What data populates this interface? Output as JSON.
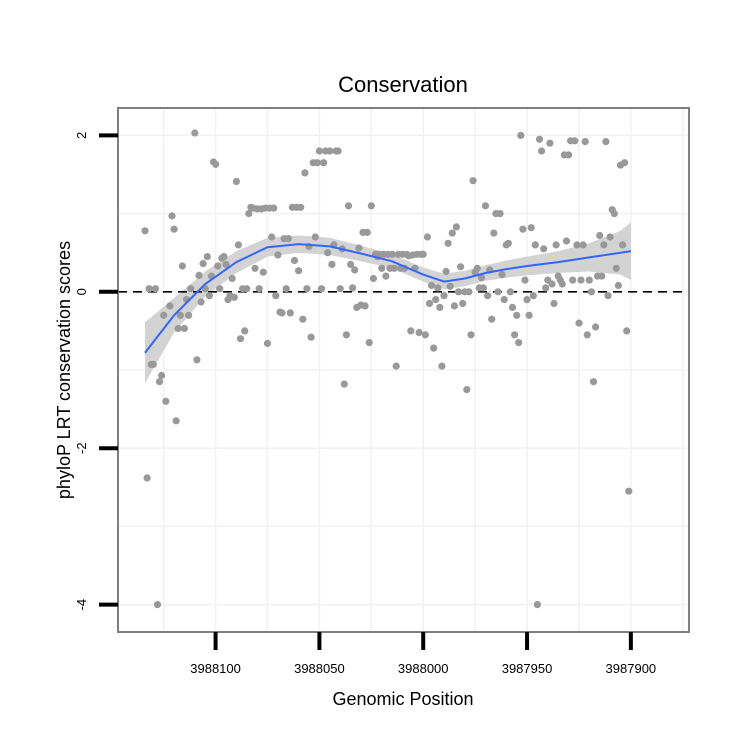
{
  "chart_data": {
    "type": "scatter",
    "title": "Conservation",
    "xlabel": "Genomic Position",
    "ylabel": "phyloP LRT conservation scores",
    "x_reversed": true,
    "xlim": [
      3988147,
      3987872
    ],
    "ylim": [
      -4.35,
      2.35
    ],
    "x_ticks": [
      3988100,
      3988050,
      3988000,
      3987950,
      3987900
    ],
    "x_tick_labels": [
      "3988100",
      "3988050",
      "3988000",
      "3987950",
      "3987900"
    ],
    "y_ticks": [
      2,
      0,
      -2,
      -4
    ],
    "y_tick_labels": [
      "2",
      "0",
      "-2",
      "-4"
    ],
    "grid": true,
    "reference_line": {
      "y": 0,
      "style": "dashed"
    },
    "colors": {
      "points": "#999999",
      "smooth_line": "#3366ff",
      "confidence_band": "#d3d3d3",
      "panel_border": "#7f7f7f",
      "grid": "#f2f2f2"
    },
    "points": [
      [
        3988134,
        0.78
      ],
      [
        3988133,
        -2.38
      ],
      [
        3988132,
        0.04
      ],
      [
        3988131,
        -0.93
      ],
      [
        3988130,
        -0.93
      ],
      [
        3988129,
        0.04
      ],
      [
        3988128,
        -4.0
      ],
      [
        3988127,
        -1.15
      ],
      [
        3988126,
        -1.07
      ],
      [
        3988125,
        -0.3
      ],
      [
        3988124,
        -1.4
      ],
      [
        3988122,
        -0.18
      ],
      [
        3988121,
        0.97
      ],
      [
        3988120,
        0.8
      ],
      [
        3988119,
        -1.65
      ],
      [
        3988118,
        -0.47
      ],
      [
        3988117,
        -0.3
      ],
      [
        3988116,
        0.33
      ],
      [
        3988115,
        -0.47
      ],
      [
        3988114,
        -0.1
      ],
      [
        3988113,
        -0.3
      ],
      [
        3988112,
        0.04
      ],
      [
        3988110,
        2.03
      ],
      [
        3988109,
        -0.87
      ],
      [
        3988108,
        0.21
      ],
      [
        3988107,
        -0.13
      ],
      [
        3988106,
        0.36
      ],
      [
        3988105,
        0.04
      ],
      [
        3988104,
        0.45
      ],
      [
        3988103,
        -0.05
      ],
      [
        3988102,
        0.2
      ],
      [
        3988101,
        1.66
      ],
      [
        3988100,
        1.63
      ],
      [
        3988099,
        0.33
      ],
      [
        3988098,
        0.04
      ],
      [
        3988097,
        0.43
      ],
      [
        3988096,
        0.45
      ],
      [
        3988095,
        0.35
      ],
      [
        3988094,
        -0.1
      ],
      [
        3988093,
        -0.05
      ],
      [
        3988092,
        0.17
      ],
      [
        3988091,
        -0.07
      ],
      [
        3988090,
        1.41
      ],
      [
        3988089,
        0.6
      ],
      [
        3988088,
        -0.6
      ],
      [
        3988087,
        0.04
      ],
      [
        3988086,
        -0.5
      ],
      [
        3988085,
        0.04
      ],
      [
        3988084,
        1.0
      ],
      [
        3988083,
        1.08
      ],
      [
        3988082,
        1.07
      ],
      [
        3988081,
        0.3
      ],
      [
        3988080,
        1.06
      ],
      [
        3988079,
        0.04
      ],
      [
        3988078,
        1.06
      ],
      [
        3988077,
        0.25
      ],
      [
        3988076,
        1.07
      ],
      [
        3988075,
        -0.66
      ],
      [
        3988074,
        1.07
      ],
      [
        3988073,
        0.7
      ],
      [
        3988072,
        1.07
      ],
      [
        3988071,
        -0.05
      ],
      [
        3988070,
        0.47
      ],
      [
        3988069,
        -0.26
      ],
      [
        3988068,
        -0.27
      ],
      [
        3988067,
        0.68
      ],
      [
        3988066,
        0.04
      ],
      [
        3988065,
        0.68
      ],
      [
        3988064,
        -0.27
      ],
      [
        3988063,
        1.08
      ],
      [
        3988062,
        0.4
      ],
      [
        3988061,
        1.08
      ],
      [
        3988060,
        0.27
      ],
      [
        3988059,
        1.08
      ],
      [
        3988058,
        -0.35
      ],
      [
        3988057,
        1.52
      ],
      [
        3988056,
        0.04
      ],
      [
        3988055,
        0.58
      ],
      [
        3988054,
        -0.58
      ],
      [
        3988053,
        1.65
      ],
      [
        3988052,
        0.7
      ],
      [
        3988051,
        1.65
      ],
      [
        3988050,
        1.8
      ],
      [
        3988049,
        0.04
      ],
      [
        3988048,
        1.65
      ],
      [
        3988047,
        1.8
      ],
      [
        3988046,
        0.5
      ],
      [
        3988045,
        1.8
      ],
      [
        3988044,
        0.35
      ],
      [
        3988043,
        0.6
      ],
      [
        3988042,
        1.8
      ],
      [
        3988041,
        1.8
      ],
      [
        3988040,
        0.04
      ],
      [
        3988039,
        0.55
      ],
      [
        3988038,
        -1.18
      ],
      [
        3988037,
        -0.55
      ],
      [
        3988036,
        1.1
      ],
      [
        3988035,
        0.35
      ],
      [
        3988034,
        0.05
      ],
      [
        3988033,
        0.28
      ],
      [
        3988032,
        -0.2
      ],
      [
        3988031,
        0.56
      ],
      [
        3988030,
        -0.17
      ],
      [
        3988029,
        0.76
      ],
      [
        3988028,
        -0.18
      ],
      [
        3988027,
        0.76
      ],
      [
        3988026,
        -0.65
      ],
      [
        3988025,
        1.1
      ],
      [
        3988024,
        0.17
      ],
      [
        3988023,
        0.48
      ],
      [
        3988022,
        0.45
      ],
      [
        3988021,
        0.48
      ],
      [
        3988020,
        0.3
      ],
      [
        3988019,
        0.48
      ],
      [
        3988018,
        0.2
      ],
      [
        3988017,
        0.48
      ],
      [
        3988016,
        0.3
      ],
      [
        3988015,
        0.48
      ],
      [
        3988014,
        0.3
      ],
      [
        3988013,
        -0.95
      ],
      [
        3988012,
        0.48
      ],
      [
        3988011,
        0.3
      ],
      [
        3988010,
        0.48
      ],
      [
        3988009,
        0.3
      ],
      [
        3988008,
        0.48
      ],
      [
        3988007,
        0.46
      ],
      [
        3988006,
        -0.5
      ],
      [
        3988005,
        0.47
      ],
      [
        3988004,
        0.3
      ],
      [
        3988003,
        0.48
      ],
      [
        3988002,
        -0.52
      ],
      [
        3988001,
        0.48
      ],
      [
        3988000,
        0.48
      ],
      [
        3987999,
        -0.55
      ],
      [
        3987998,
        0.7
      ],
      [
        3987997,
        -0.15
      ],
      [
        3987996,
        0.08
      ],
      [
        3987995,
        -0.72
      ],
      [
        3987994,
        -0.1
      ],
      [
        3987993,
        0.05
      ],
      [
        3987992,
        -0.2
      ],
      [
        3987991,
        -0.95
      ],
      [
        3987990,
        -0.05
      ],
      [
        3987989,
        0.26
      ],
      [
        3987988,
        0.62
      ],
      [
        3987987,
        0.07
      ],
      [
        3987986,
        0.75
      ],
      [
        3987985,
        -0.18
      ],
      [
        3987984,
        0.83
      ],
      [
        3987983,
        0.0
      ],
      [
        3987982,
        0.32
      ],
      [
        3987981,
        -0.15
      ],
      [
        3987980,
        0.0
      ],
      [
        3987979,
        -1.25
      ],
      [
        3987978,
        0.0
      ],
      [
        3987977,
        -0.55
      ],
      [
        3987976,
        1.42
      ],
      [
        3987975,
        0.25
      ],
      [
        3987974,
        0.3
      ],
      [
        3987973,
        0.05
      ],
      [
        3987972,
        0.18
      ],
      [
        3987971,
        0.05
      ],
      [
        3987970,
        1.1
      ],
      [
        3987969,
        -0.05
      ],
      [
        3987968,
        0.28
      ],
      [
        3987967,
        -0.35
      ],
      [
        3987966,
        0.75
      ],
      [
        3987965,
        1.0
      ],
      [
        3987964,
        0.0
      ],
      [
        3987963,
        1.0
      ],
      [
        3987962,
        0.22
      ],
      [
        3987961,
        -0.1
      ],
      [
        3987960,
        0.6
      ],
      [
        3987959,
        0.62
      ],
      [
        3987958,
        0.0
      ],
      [
        3987957,
        -0.2
      ],
      [
        3987956,
        -0.55
      ],
      [
        3987955,
        -0.3
      ],
      [
        3987954,
        -0.65
      ],
      [
        3987953,
        2.0
      ],
      [
        3987952,
        0.8
      ],
      [
        3987951,
        0.15
      ],
      [
        3987950,
        -0.1
      ],
      [
        3987949,
        -0.3
      ],
      [
        3987948,
        0.82
      ],
      [
        3987947,
        -0.05
      ],
      [
        3987946,
        0.6
      ],
      [
        3987945,
        -4.0
      ],
      [
        3987944,
        1.95
      ],
      [
        3987943,
        1.8
      ],
      [
        3987942,
        0.55
      ],
      [
        3987941,
        0.05
      ],
      [
        3987940,
        0.15
      ],
      [
        3987939,
        1.9
      ],
      [
        3987938,
        0.1
      ],
      [
        3987937,
        -0.15
      ],
      [
        3987936,
        0.6
      ],
      [
        3987935,
        0.2
      ],
      [
        3987934,
        0.15
      ],
      [
        3987933,
        0.1
      ],
      [
        3987932,
        1.75
      ],
      [
        3987931,
        0.65
      ],
      [
        3987930,
        1.75
      ],
      [
        3987929,
        1.93
      ],
      [
        3987928,
        0.15
      ],
      [
        3987927,
        1.93
      ],
      [
        3987926,
        0.6
      ],
      [
        3987925,
        -0.4
      ],
      [
        3987924,
        0.15
      ],
      [
        3987923,
        0.6
      ],
      [
        3987922,
        1.92
      ],
      [
        3987921,
        -0.55
      ],
      [
        3987920,
        0.15
      ],
      [
        3987919,
        0.0
      ],
      [
        3987918,
        -1.15
      ],
      [
        3987917,
        -0.45
      ],
      [
        3987916,
        0.2
      ],
      [
        3987915,
        0.72
      ],
      [
        3987914,
        0.2
      ],
      [
        3987913,
        0.6
      ],
      [
        3987912,
        1.92
      ],
      [
        3987911,
        -0.05
      ],
      [
        3987910,
        0.7
      ],
      [
        3987909,
        1.05
      ],
      [
        3987908,
        1.0
      ],
      [
        3987907,
        0.3
      ],
      [
        3987906,
        0.08
      ],
      [
        3987905,
        1.62
      ],
      [
        3987904,
        0.6
      ],
      [
        3987903,
        1.65
      ],
      [
        3987902,
        -0.5
      ],
      [
        3987901,
        -2.55
      ]
    ],
    "smooth_line": {
      "x": [
        3988134,
        3988120,
        3988105,
        3988090,
        3988075,
        3988060,
        3988045,
        3988030,
        3988015,
        3988000,
        3987990,
        3987980,
        3987970,
        3987960,
        3987950,
        3987935,
        3987920,
        3987905,
        3987900
      ],
      "y": [
        -0.78,
        -0.3,
        0.1,
        0.38,
        0.57,
        0.61,
        0.58,
        0.49,
        0.39,
        0.22,
        0.13,
        0.17,
        0.24,
        0.29,
        0.33,
        0.38,
        0.44,
        0.5,
        0.52
      ]
    },
    "confidence_band": {
      "x": [
        3988134,
        3988120,
        3988105,
        3988090,
        3988075,
        3988060,
        3988045,
        3988030,
        3988015,
        3988000,
        3987990,
        3987980,
        3987970,
        3987960,
        3987950,
        3987935,
        3987920,
        3987905,
        3987900
      ],
      "lower": [
        -1.17,
        -0.52,
        -0.06,
        0.24,
        0.45,
        0.5,
        0.47,
        0.39,
        0.3,
        0.13,
        0.03,
        0.07,
        0.14,
        0.18,
        0.21,
        0.24,
        0.26,
        0.22,
        0.15
      ],
      "upper": [
        -0.39,
        -0.08,
        0.26,
        0.52,
        0.69,
        0.72,
        0.69,
        0.59,
        0.48,
        0.31,
        0.23,
        0.27,
        0.34,
        0.4,
        0.45,
        0.52,
        0.62,
        0.78,
        0.89
      ]
    }
  }
}
